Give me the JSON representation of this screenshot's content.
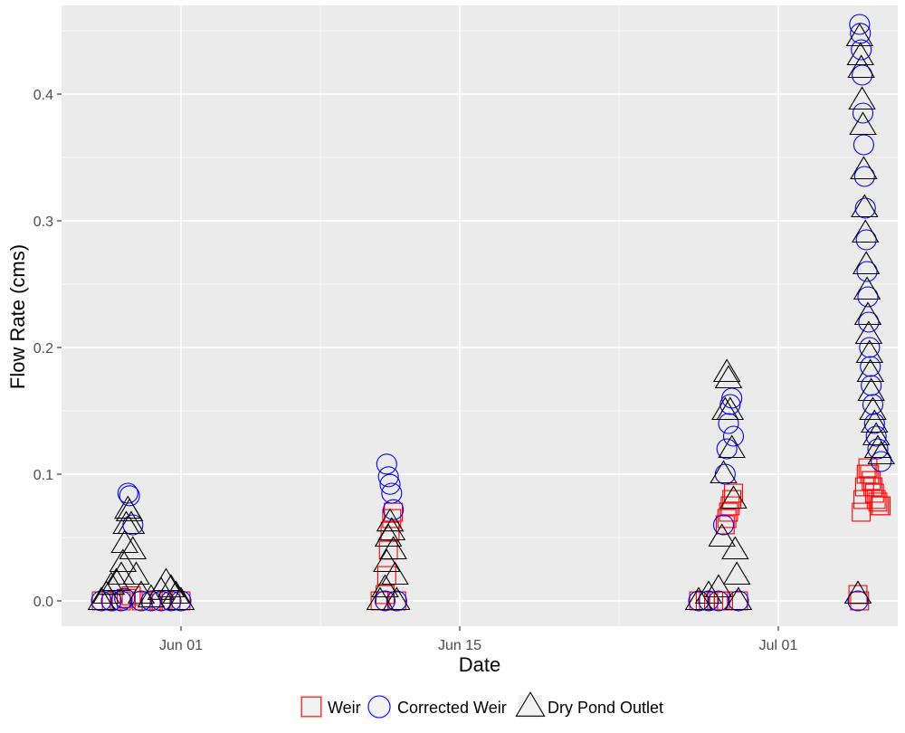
{
  "chart_data": {
    "type": "scatter",
    "xlabel": "Date",
    "ylabel": "Flow Rate (cms)",
    "x_axis_type": "date",
    "xlim": [
      "2020-05-26",
      "2020-07-07"
    ],
    "ylim": [
      -0.02,
      0.47
    ],
    "x_ticks": [
      {
        "date": "2020-06-01",
        "label": "Jun 01"
      },
      {
        "date": "2020-06-15",
        "label": "Jun 15"
      },
      {
        "date": "2020-07-01",
        "label": "Jul 01"
      }
    ],
    "x_minor_ticks": [
      "2020-06-08",
      "2020-06-23"
    ],
    "y_ticks": [
      {
        "value": 0.0,
        "label": "0.0"
      },
      {
        "value": 0.1,
        "label": "0.1"
      },
      {
        "value": 0.2,
        "label": "0.2"
      },
      {
        "value": 0.3,
        "label": "0.3"
      },
      {
        "value": 0.4,
        "label": "0.4"
      }
    ],
    "y_minor_ticks": [
      0.05,
      0.15,
      0.25,
      0.35,
      0.45
    ],
    "grid": true,
    "legend_position": "bottom",
    "background_color": "#ebebeb",
    "series": [
      {
        "name": "Weir",
        "marker": "square",
        "color": "#ff0000",
        "points": [
          [
            "2020-05-28",
            0.0
          ],
          [
            "2020-05-28 12:00",
            0.0
          ],
          [
            "2020-05-29",
            0.0
          ],
          [
            "2020-05-29 06:00",
            0.002
          ],
          [
            "2020-05-29 12:00",
            0.004
          ],
          [
            "2020-05-30",
            0.0
          ],
          [
            "2020-05-30 12:00",
            0.0
          ],
          [
            "2020-05-31",
            0.0
          ],
          [
            "2020-05-31 12:00",
            0.0
          ],
          [
            "2020-06-01",
            0.0
          ],
          [
            "2020-06-11",
            0.0
          ],
          [
            "2020-06-11 06:00",
            0.005
          ],
          [
            "2020-06-11 08:00",
            0.02
          ],
          [
            "2020-06-11 10:00",
            0.04
          ],
          [
            "2020-06-11 12:00",
            0.055
          ],
          [
            "2020-06-11 14:00",
            0.065
          ],
          [
            "2020-06-11 16:00",
            0.07
          ],
          [
            "2020-06-11 20:00",
            0.0
          ],
          [
            "2020-06-27",
            0.0
          ],
          [
            "2020-06-27 08:00",
            0.0
          ],
          [
            "2020-06-27 12:00",
            0.0
          ],
          [
            "2020-06-27 18:00",
            0.0
          ],
          [
            "2020-06-28",
            0.0
          ],
          [
            "2020-06-28 06:00",
            0.0
          ],
          [
            "2020-06-28 08:00",
            0.06
          ],
          [
            "2020-06-28 10:00",
            0.065
          ],
          [
            "2020-06-28 12:00",
            0.07
          ],
          [
            "2020-06-28 14:00",
            0.075
          ],
          [
            "2020-06-28 16:00",
            0.08
          ],
          [
            "2020-06-28 18:00",
            0.085
          ],
          [
            "2020-06-29",
            0.0
          ],
          [
            "2020-07-05",
            0.005
          ],
          [
            "2020-07-05 02:00",
            0.0
          ],
          [
            "2020-07-05 04:00",
            0.07
          ],
          [
            "2020-07-05 06:00",
            0.08
          ],
          [
            "2020-07-05 08:00",
            0.09
          ],
          [
            "2020-07-05 10:00",
            0.1
          ],
          [
            "2020-07-05 12:00",
            0.105
          ],
          [
            "2020-07-05 14:00",
            0.1
          ],
          [
            "2020-07-05 16:00",
            0.095
          ],
          [
            "2020-07-05 18:00",
            0.09
          ],
          [
            "2020-07-05 20:00",
            0.085
          ],
          [
            "2020-07-05 22:00",
            0.08
          ],
          [
            "2020-07-06",
            0.078
          ],
          [
            "2020-07-06 02:00",
            0.075
          ],
          [
            "2020-07-06 04:00",
            0.075
          ]
        ]
      },
      {
        "name": "Corrected Weir",
        "marker": "circle",
        "color": "#0000ff",
        "points": [
          [
            "2020-05-28",
            0.0
          ],
          [
            "2020-05-28 12:00",
            0.0
          ],
          [
            "2020-05-29",
            0.0
          ],
          [
            "2020-05-29 04:00",
            0.002
          ],
          [
            "2020-05-29 08:00",
            0.085
          ],
          [
            "2020-05-29 10:00",
            0.083
          ],
          [
            "2020-05-29 14:00",
            0.06
          ],
          [
            "2020-05-30",
            0.0
          ],
          [
            "2020-05-30 12:00",
            0.0
          ],
          [
            "2020-05-31",
            0.0
          ],
          [
            "2020-05-31 12:00",
            0.0
          ],
          [
            "2020-06-01",
            0.0
          ],
          [
            "2020-06-11 06:00",
            0.0
          ],
          [
            "2020-06-11 08:00",
            0.108
          ],
          [
            "2020-06-11 10:00",
            0.098
          ],
          [
            "2020-06-11 12:00",
            0.092
          ],
          [
            "2020-06-11 14:00",
            0.085
          ],
          [
            "2020-06-11 16:00",
            0.072
          ],
          [
            "2020-06-11 20:00",
            0.0
          ],
          [
            "2020-06-27",
            0.0
          ],
          [
            "2020-06-27 12:00",
            0.0
          ],
          [
            "2020-06-28",
            0.0
          ],
          [
            "2020-06-28 06:00",
            0.06
          ],
          [
            "2020-06-28 08:00",
            0.1
          ],
          [
            "2020-06-28 10:00",
            0.12
          ],
          [
            "2020-06-28 12:00",
            0.14
          ],
          [
            "2020-06-28 14:00",
            0.155
          ],
          [
            "2020-06-28 16:00",
            0.16
          ],
          [
            "2020-06-28 18:00",
            0.13
          ],
          [
            "2020-06-29",
            0.0
          ],
          [
            "2020-07-05",
            0.0
          ],
          [
            "2020-07-05 02:00",
            0.455
          ],
          [
            "2020-07-05 03:00",
            0.448
          ],
          [
            "2020-07-05 04:00",
            0.435
          ],
          [
            "2020-07-05 05:00",
            0.415
          ],
          [
            "2020-07-05 06:00",
            0.385
          ],
          [
            "2020-07-05 07:00",
            0.36
          ],
          [
            "2020-07-05 08:00",
            0.335
          ],
          [
            "2020-07-05 09:00",
            0.31
          ],
          [
            "2020-07-05 10:00",
            0.285
          ],
          [
            "2020-07-05 11:00",
            0.26
          ],
          [
            "2020-07-05 12:00",
            0.24
          ],
          [
            "2020-07-05 13:00",
            0.22
          ],
          [
            "2020-07-05 14:00",
            0.2
          ],
          [
            "2020-07-05 15:00",
            0.185
          ],
          [
            "2020-07-05 16:00",
            0.17
          ],
          [
            "2020-07-05 18:00",
            0.155
          ],
          [
            "2020-07-05 20:00",
            0.14
          ],
          [
            "2020-07-05 22:00",
            0.13
          ],
          [
            "2020-07-06",
            0.12
          ],
          [
            "2020-07-06 04:00",
            0.11
          ]
        ]
      },
      {
        "name": "Dry Pond Outlet",
        "marker": "triangle",
        "color": "#000000",
        "points": [
          [
            "2020-05-28",
            0.0
          ],
          [
            "2020-05-28 06:00",
            0.005
          ],
          [
            "2020-05-28 12:00",
            0.012
          ],
          [
            "2020-05-28 18:00",
            0.015
          ],
          [
            "2020-05-29",
            0.02
          ],
          [
            "2020-05-29 02:00",
            0.03
          ],
          [
            "2020-05-29 04:00",
            0.045
          ],
          [
            "2020-05-29 06:00",
            0.06
          ],
          [
            "2020-05-29 08:00",
            0.072
          ],
          [
            "2020-05-29 10:00",
            0.07
          ],
          [
            "2020-05-29 12:00",
            0.06
          ],
          [
            "2020-05-29 14:00",
            0.04
          ],
          [
            "2020-05-29 18:00",
            0.02
          ],
          [
            "2020-05-30",
            0.005
          ],
          [
            "2020-05-30 12:00",
            0.002
          ],
          [
            "2020-05-31",
            0.008
          ],
          [
            "2020-05-31 06:00",
            0.015
          ],
          [
            "2020-05-31 12:00",
            0.01
          ],
          [
            "2020-05-31 18:00",
            0.005
          ],
          [
            "2020-06-01",
            0.0
          ],
          [
            "2020-06-11",
            0.0
          ],
          [
            "2020-06-11 06:00",
            0.01
          ],
          [
            "2020-06-11 08:00",
            0.03
          ],
          [
            "2020-06-11 10:00",
            0.05
          ],
          [
            "2020-06-11 12:00",
            0.062
          ],
          [
            "2020-06-11 14:00",
            0.055
          ],
          [
            "2020-06-11 16:00",
            0.04
          ],
          [
            "2020-06-11 18:00",
            0.02
          ],
          [
            "2020-06-11 20:00",
            0.0
          ],
          [
            "2020-06-27",
            0.0
          ],
          [
            "2020-06-27 12:00",
            0.005
          ],
          [
            "2020-06-28",
            0.01
          ],
          [
            "2020-06-28 04:00",
            0.05
          ],
          [
            "2020-06-28 06:00",
            0.1
          ],
          [
            "2020-06-28 08:00",
            0.15
          ],
          [
            "2020-06-28 10:00",
            0.18
          ],
          [
            "2020-06-28 12:00",
            0.175
          ],
          [
            "2020-06-28 14:00",
            0.15
          ],
          [
            "2020-06-28 16:00",
            0.12
          ],
          [
            "2020-06-28 18:00",
            0.08
          ],
          [
            "2020-06-28 20:00",
            0.04
          ],
          [
            "2020-06-28 22:00",
            0.02
          ],
          [
            "2020-06-29",
            0.0
          ],
          [
            "2020-07-05",
            0.005
          ],
          [
            "2020-07-05 02:00",
            0.445
          ],
          [
            "2020-07-05 03:00",
            0.43
          ],
          [
            "2020-07-05 04:00",
            0.42
          ],
          [
            "2020-07-05 05:00",
            0.395
          ],
          [
            "2020-07-05 06:00",
            0.375
          ],
          [
            "2020-07-05 07:00",
            0.34
          ],
          [
            "2020-07-05 08:00",
            0.31
          ],
          [
            "2020-07-05 09:00",
            0.29
          ],
          [
            "2020-07-05 10:00",
            0.265
          ],
          [
            "2020-07-05 11:00",
            0.245
          ],
          [
            "2020-07-05 12:00",
            0.225
          ],
          [
            "2020-07-05 13:00",
            0.21
          ],
          [
            "2020-07-05 14:00",
            0.195
          ],
          [
            "2020-07-05 15:00",
            0.18
          ],
          [
            "2020-07-05 16:00",
            0.165
          ],
          [
            "2020-07-05 18:00",
            0.15
          ],
          [
            "2020-07-05 20:00",
            0.14
          ],
          [
            "2020-07-05 22:00",
            0.13
          ],
          [
            "2020-07-06",
            0.12
          ],
          [
            "2020-07-06 04:00",
            0.115
          ]
        ]
      }
    ]
  }
}
